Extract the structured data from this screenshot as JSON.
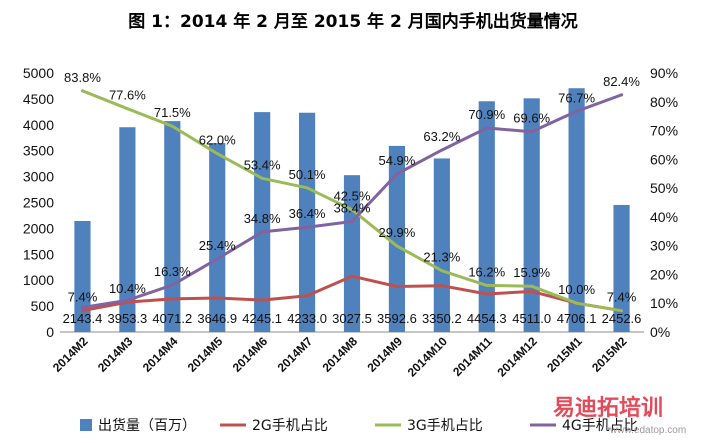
{
  "chart_data": {
    "type": "bar",
    "title": "图 1：2014 年 2 月至 2015 年 2 月国内手机出货量情况",
    "categories": [
      "2014M2",
      "2014M3",
      "2014M4",
      "2014M5",
      "2014M6",
      "2014M7",
      "2014M8",
      "2014M9",
      "2014M10",
      "2014M11",
      "2014M12",
      "2015M1",
      "2015M2"
    ],
    "ylim_left": [
      0,
      5000
    ],
    "yticks_left": [
      0,
      500,
      1000,
      1500,
      2000,
      2500,
      3000,
      3500,
      4000,
      4500,
      5000
    ],
    "ylim_right": [
      0,
      90
    ],
    "yticks_right": [
      "0%",
      "10%",
      "20%",
      "30%",
      "40%",
      "50%",
      "60%",
      "70%",
      "80%",
      "90%"
    ],
    "grid": false,
    "legend_position": "bottom",
    "series": [
      {
        "name": "出货量（百万）",
        "type": "bar",
        "axis": "left",
        "color": "#4f81bd",
        "values": [
          2143.4,
          3953.3,
          4071.2,
          3646.9,
          4245.1,
          4233.0,
          3027.5,
          3592.6,
          3350.2,
          4454.3,
          4511.0,
          4706.1,
          2452.6
        ],
        "labels": [
          "2143.4",
          "3953.3",
          "4071.2",
          "3646.9",
          "4245.1",
          "4233.0",
          "3027.5",
          "3592.6",
          "3350.2",
          "4454.3",
          "4511.0",
          "4706.1",
          "2452.6"
        ]
      },
      {
        "name": "2G手机占比",
        "type": "line",
        "axis": "right",
        "color": "#c0504d",
        "values": [
          7.4,
          10.4,
          11.5,
          11.8,
          11.1,
          12.6,
          19.4,
          15.8,
          16.1,
          13.2,
          14.1,
          10.0,
          7.4
        ],
        "labels": [
          "7.4%",
          "10.4%",
          "",
          "",
          "",
          "",
          "",
          "",
          "",
          "",
          "",
          "10.0%",
          "7.4%"
        ]
      },
      {
        "name": "3G手机占比",
        "type": "line",
        "axis": "right",
        "color": "#9bbb59",
        "values": [
          83.8,
          77.6,
          71.5,
          62.0,
          53.4,
          50.1,
          42.5,
          29.9,
          21.3,
          16.2,
          15.9,
          10.0,
          7.4
        ],
        "labels": [
          "83.8%",
          "77.6%",
          "71.5%",
          "62.0%",
          "53.4%",
          "50.1%",
          "42.5%",
          "29.9%",
          "21.3%",
          "16.2%",
          "15.9%",
          "",
          ""
        ]
      },
      {
        "name": "4G手机占比",
        "type": "line",
        "axis": "right",
        "color": "#8064a2",
        "values": [
          8.5,
          11.0,
          16.3,
          25.4,
          34.8,
          36.4,
          38.4,
          54.9,
          63.2,
          70.9,
          69.6,
          76.7,
          82.4
        ],
        "labels": [
          "",
          "",
          "16.3%",
          "25.4%",
          "34.8%",
          "36.4%",
          "38.4%",
          "54.9%",
          "63.2%",
          "70.9%",
          "69.6%",
          "76.7%",
          "82.4%"
        ]
      }
    ]
  },
  "watermark": {
    "text": "易迪拓培训",
    "subtext": "www.edatop.com"
  }
}
